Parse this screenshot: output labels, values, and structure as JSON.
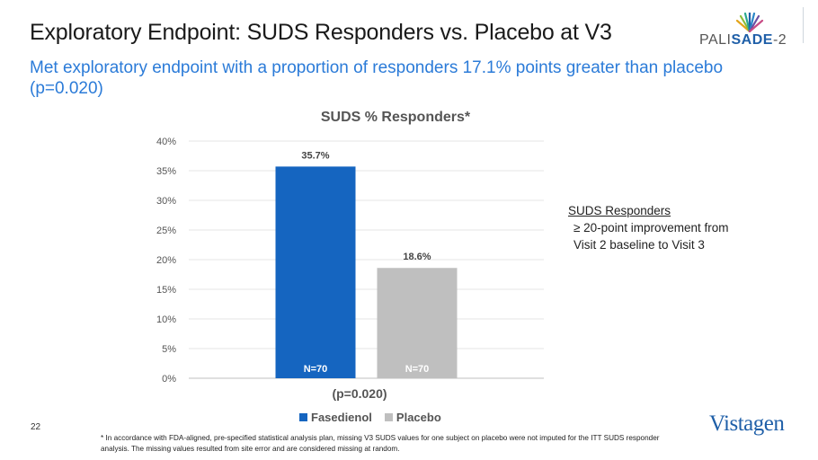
{
  "slide": {
    "title": "Exploratory Endpoint: SUDS Responders vs. Placebo at V3",
    "subtitle": "Met exploratory endpoint with a proportion of responders 17.1% points greater than placebo (p=0.020)",
    "page_number": "22",
    "footnote": "* In accordance with FDA-aligned, pre-specified statistical analysis plan, missing V3 SUDS values for one subject on placebo were not imputed for the ITT SUDS responder analysis. The missing values resulted from site error and are considered missing at random.",
    "logo_top": {
      "prefix": "PALI",
      "highlight": "SADE",
      "suffix": "-2"
    },
    "logo_bottom": "Vistagen"
  },
  "side_note": {
    "heading": "SUDS Responders",
    "line1": "≥ 20-point improvement from",
    "line2": "Visit 2 baseline to Visit 3"
  },
  "chart_data": {
    "type": "bar",
    "title": "SUDS % Responders*",
    "categories": [
      "Fasedienol",
      "Placebo"
    ],
    "values": [
      35.7,
      18.6
    ],
    "value_labels": [
      "35.7%",
      "18.6%"
    ],
    "n_labels": [
      "N=70",
      "N=70"
    ],
    "x_label": "(p=0.020)",
    "ylim": [
      0,
      40
    ],
    "y_ticks": [
      "0%",
      "5%",
      "10%",
      "15%",
      "20%",
      "25%",
      "30%",
      "35%",
      "40%"
    ],
    "colors": [
      "#1565c0",
      "#bfbfbf"
    ],
    "grid": true,
    "legend": {
      "position": "bottom",
      "entries": [
        "Fasedienol",
        "Placebo"
      ]
    }
  }
}
